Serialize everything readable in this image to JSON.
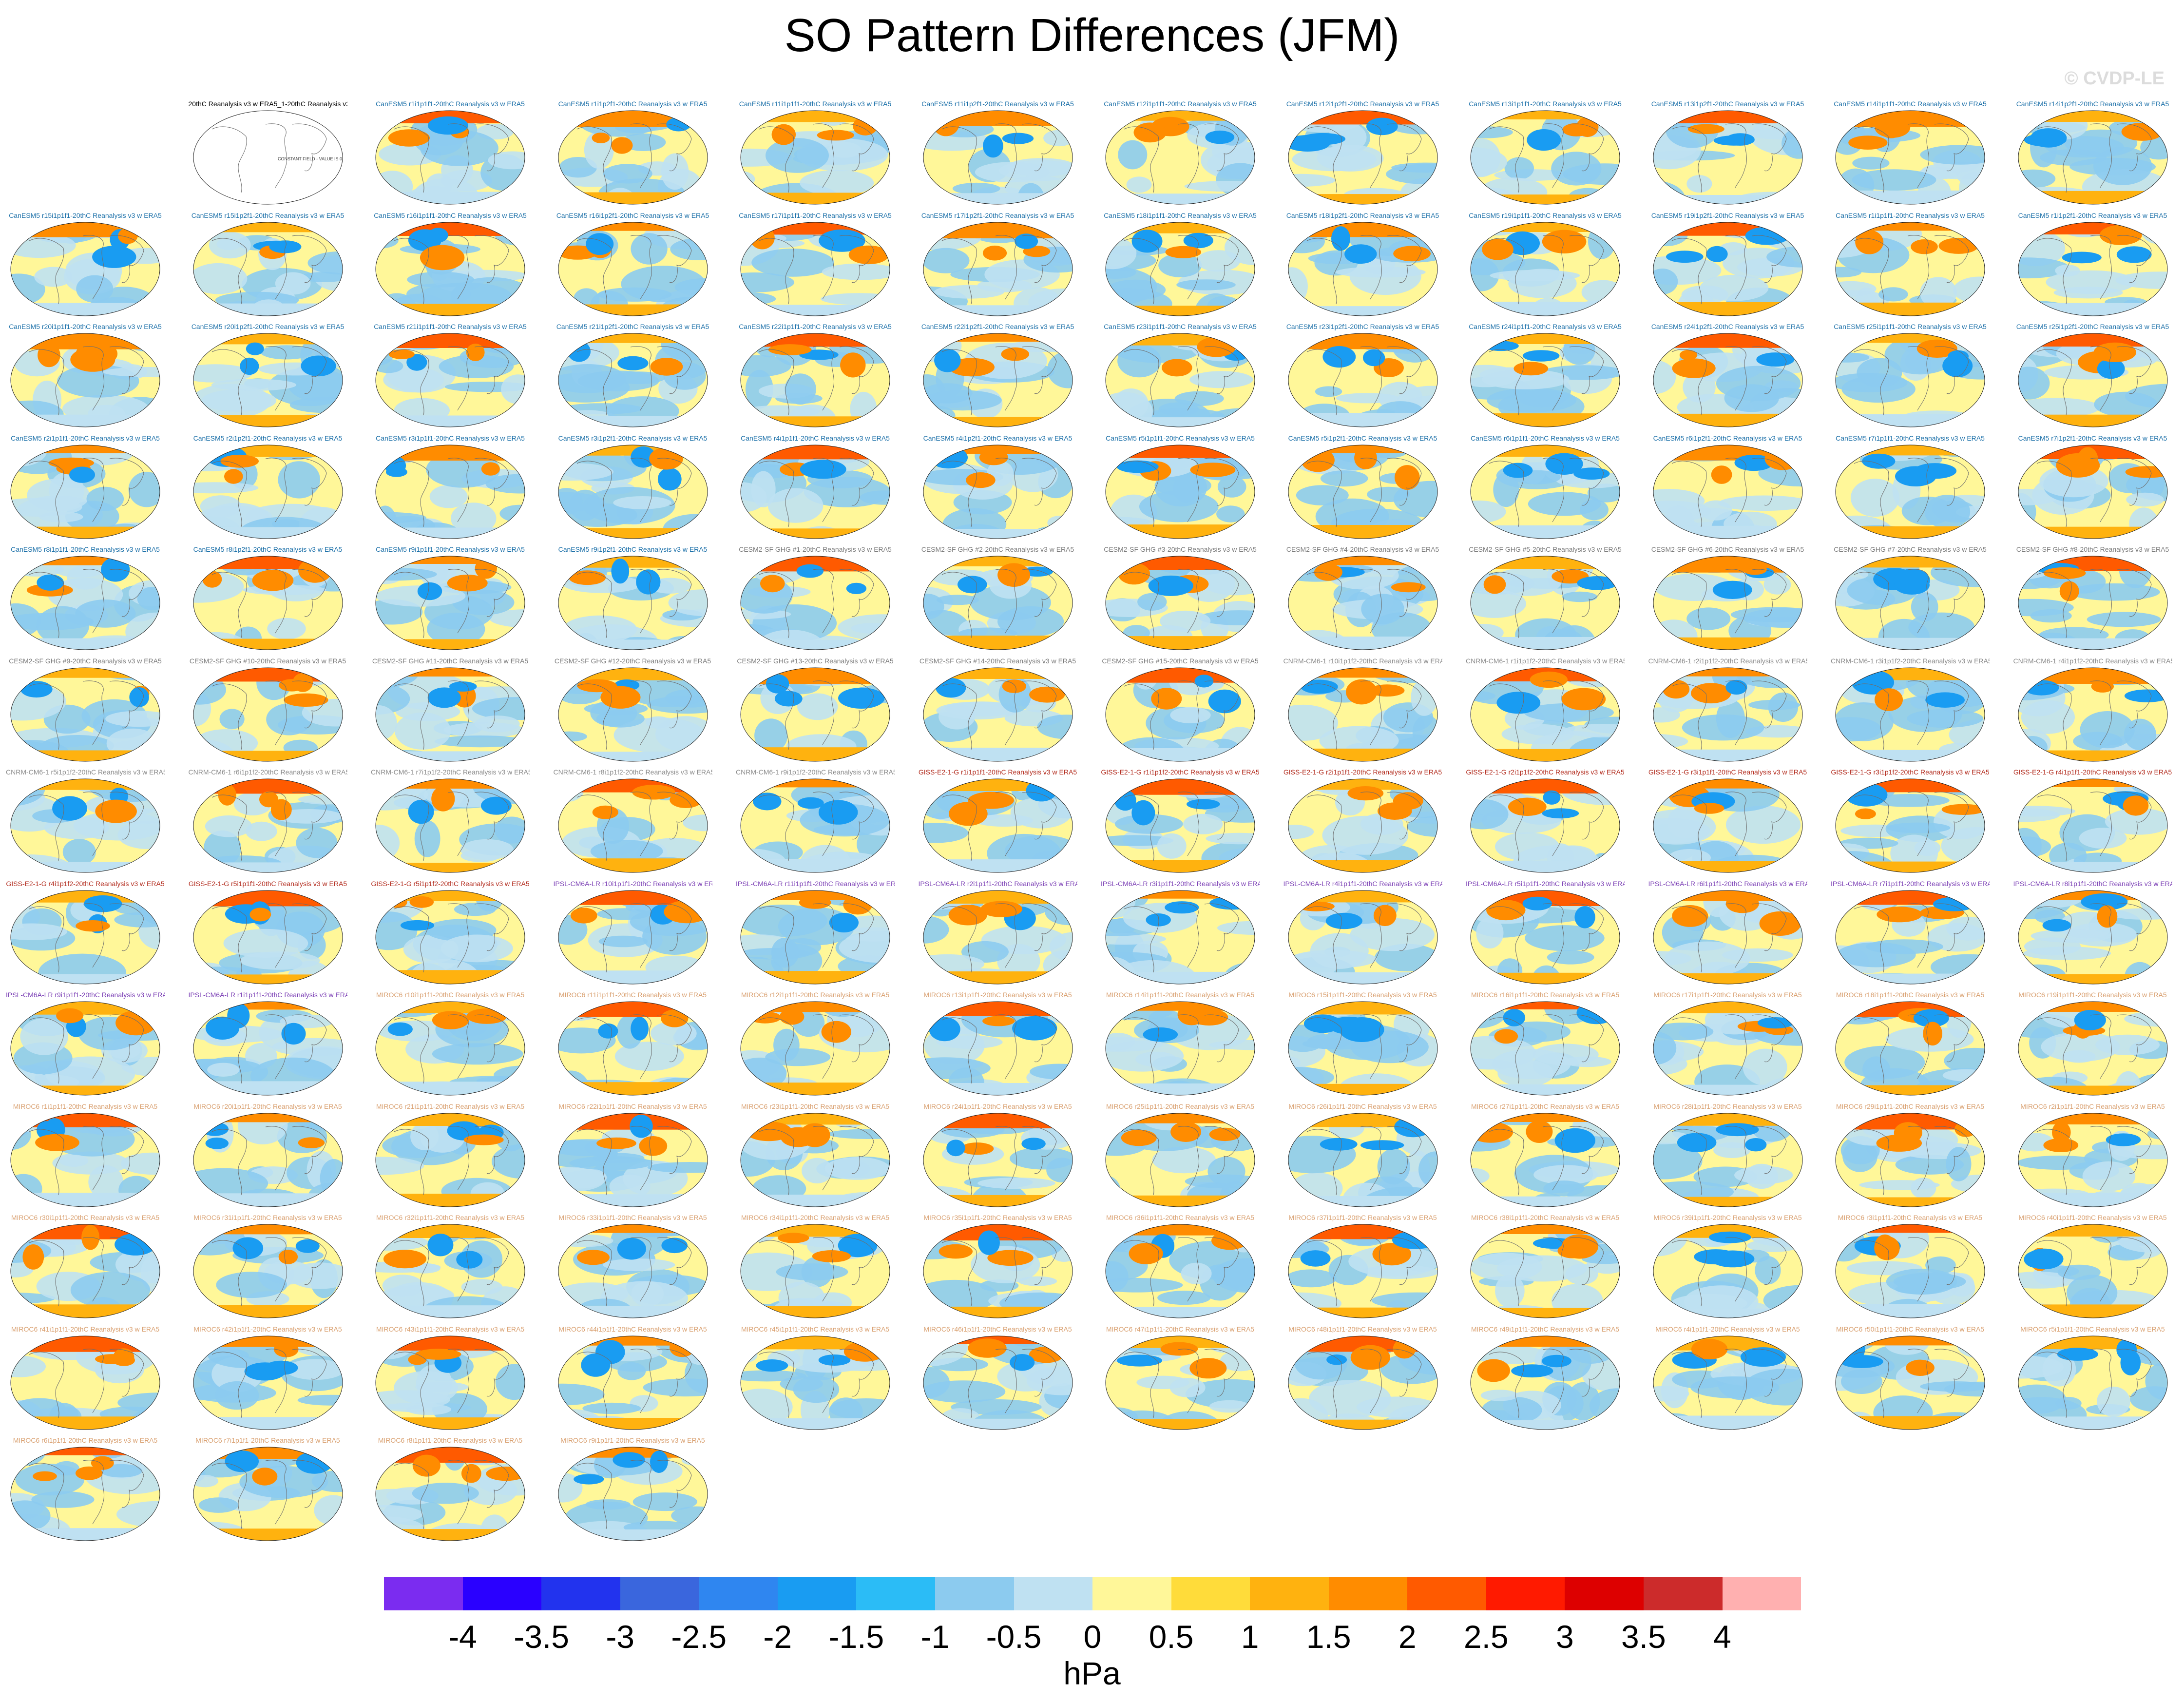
{
  "title": "SO Pattern Differences (JFM)",
  "watermark": "© CVDP-LE",
  "units": "hPa",
  "reference_panel": {
    "label": "20thC Reanalysis v3 w ERA5_1-20thC Reanalysis v3 w ERA5",
    "note": "CONSTANT FIELD - VALUE IS 0"
  },
  "colors": {
    "CanESM5": "#1a6fa8",
    "CESM2": "#7a7a7a",
    "CNRM": "#8a8a8a",
    "GISS": "#b22a1c",
    "IPSL": "#7b3fb5",
    "MIROC6": "#d9a070"
  },
  "colorbar": {
    "colors": [
      "#7b2cf0",
      "#2a00ff",
      "#2233ee",
      "#3a66dd",
      "#2f86f0",
      "#199cf2",
      "#2bbcf6",
      "#8ccbef",
      "#bfe1f2",
      "#fff799",
      "#ffdc3a",
      "#ffb20f",
      "#ff8c00",
      "#ff5a00",
      "#ff1a00",
      "#dd0000",
      "#cc2b2b",
      "#ffb0b0"
    ],
    "ticks": [
      "-4",
      "-3.5",
      "-3",
      "-2.5",
      "-2",
      "-1.5",
      "-1",
      "-0.5",
      "0",
      "0.5",
      "1",
      "1.5",
      "2",
      "2.5",
      "3",
      "3.5",
      "4"
    ]
  },
  "panels": [
    {
      "label": "CanESM5 r1i1p1f1-20thC Reanalysis v3 w ERA5",
      "model": "CanESM5"
    },
    {
      "label": "CanESM5 r1i1p2f1-20thC Reanalysis v3 w ERA5",
      "model": "CanESM5"
    },
    {
      "label": "CanESM5 r11i1p1f1-20thC Reanalysis v3 w ERA5",
      "model": "CanESM5"
    },
    {
      "label": "CanESM5 r11i1p2f1-20thC Reanalysis v3 w ERA5",
      "model": "CanESM5"
    },
    {
      "label": "CanESM5 r12i1p1f1-20thC Reanalysis v3 w ERA5",
      "model": "CanESM5"
    },
    {
      "label": "CanESM5 r12i1p2f1-20thC Reanalysis v3 w ERA5",
      "model": "CanESM5"
    },
    {
      "label": "CanESM5 r13i1p1f1-20thC Reanalysis v3 w ERA5",
      "model": "CanESM5"
    },
    {
      "label": "CanESM5 r13i1p2f1-20thC Reanalysis v3 w ERA5",
      "model": "CanESM5"
    },
    {
      "label": "CanESM5 r14i1p1f1-20thC Reanalysis v3 w ERA5",
      "model": "CanESM5"
    },
    {
      "label": "CanESM5 r14i1p2f1-20thC Reanalysis v3 w ERA5",
      "model": "CanESM5"
    },
    {
      "label": "CanESM5 r15i1p1f1-20thC Reanalysis v3 w ERA5",
      "model": "CanESM5"
    },
    {
      "label": "CanESM5 r15i1p2f1-20thC Reanalysis v3 w ERA5",
      "model": "CanESM5"
    },
    {
      "label": "CanESM5 r16i1p1f1-20thC Reanalysis v3 w ERA5",
      "model": "CanESM5"
    },
    {
      "label": "CanESM5 r16i1p2f1-20thC Reanalysis v3 w ERA5",
      "model": "CanESM5"
    },
    {
      "label": "CanESM5 r17i1p1f1-20thC Reanalysis v3 w ERA5",
      "model": "CanESM5"
    },
    {
      "label": "CanESM5 r17i1p2f1-20thC Reanalysis v3 w ERA5",
      "model": "CanESM5"
    },
    {
      "label": "CanESM5 r18i1p1f1-20thC Reanalysis v3 w ERA5",
      "model": "CanESM5"
    },
    {
      "label": "CanESM5 r18i1p2f1-20thC Reanalysis v3 w ERA5",
      "model": "CanESM5"
    },
    {
      "label": "CanESM5 r19i1p1f1-20thC Reanalysis v3 w ERA5",
      "model": "CanESM5"
    },
    {
      "label": "CanESM5 r19i1p2f1-20thC Reanalysis v3 w ERA5",
      "model": "CanESM5"
    },
    {
      "label": "CanESM5 r1i1p1f1-20thC Reanalysis v3 w ERA5",
      "model": "CanESM5"
    },
    {
      "label": "CanESM5 r1i1p2f1-20thC Reanalysis v3 w ERA5",
      "model": "CanESM5"
    },
    {
      "label": "CanESM5 r20i1p1f1-20thC Reanalysis v3 w ERA5",
      "model": "CanESM5"
    },
    {
      "label": "CanESM5 r20i1p2f1-20thC Reanalysis v3 w ERA5",
      "model": "CanESM5"
    },
    {
      "label": "CanESM5 r21i1p1f1-20thC Reanalysis v3 w ERA5",
      "model": "CanESM5"
    },
    {
      "label": "CanESM5 r21i1p2f1-20thC Reanalysis v3 w ERA5",
      "model": "CanESM5"
    },
    {
      "label": "CanESM5 r22i1p1f1-20thC Reanalysis v3 w ERA5",
      "model": "CanESM5"
    },
    {
      "label": "CanESM5 r22i1p2f1-20thC Reanalysis v3 w ERA5",
      "model": "CanESM5"
    },
    {
      "label": "CanESM5 r23i1p1f1-20thC Reanalysis v3 w ERA5",
      "model": "CanESM5"
    },
    {
      "label": "CanESM5 r23i1p2f1-20thC Reanalysis v3 w ERA5",
      "model": "CanESM5"
    },
    {
      "label": "CanESM5 r24i1p1f1-20thC Reanalysis v3 w ERA5",
      "model": "CanESM5"
    },
    {
      "label": "CanESM5 r24i1p2f1-20thC Reanalysis v3 w ERA5",
      "model": "CanESM5"
    },
    {
      "label": "CanESM5 r25i1p1f1-20thC Reanalysis v3 w ERA5",
      "model": "CanESM5"
    },
    {
      "label": "CanESM5 r25i1p2f1-20thC Reanalysis v3 w ERA5",
      "model": "CanESM5"
    },
    {
      "label": "CanESM5 r2i1p1f1-20thC Reanalysis v3 w ERA5",
      "model": "CanESM5"
    },
    {
      "label": "CanESM5 r2i1p2f1-20thC Reanalysis v3 w ERA5",
      "model": "CanESM5"
    },
    {
      "label": "CanESM5 r3i1p1f1-20thC Reanalysis v3 w ERA5",
      "model": "CanESM5"
    },
    {
      "label": "CanESM5 r3i1p2f1-20thC Reanalysis v3 w ERA5",
      "model": "CanESM5"
    },
    {
      "label": "CanESM5 r4i1p1f1-20thC Reanalysis v3 w ERA5",
      "model": "CanESM5"
    },
    {
      "label": "CanESM5 r4i1p2f1-20thC Reanalysis v3 w ERA5",
      "model": "CanESM5"
    },
    {
      "label": "CanESM5 r5i1p1f1-20thC Reanalysis v3 w ERA5",
      "model": "CanESM5"
    },
    {
      "label": "CanESM5 r5i1p2f1-20thC Reanalysis v3 w ERA5",
      "model": "CanESM5"
    },
    {
      "label": "CanESM5 r6i1p1f1-20thC Reanalysis v3 w ERA5",
      "model": "CanESM5"
    },
    {
      "label": "CanESM5 r6i1p2f1-20thC Reanalysis v3 w ERA5",
      "model": "CanESM5"
    },
    {
      "label": "CanESM5 r7i1p1f1-20thC Reanalysis v3 w ERA5",
      "model": "CanESM5"
    },
    {
      "label": "CanESM5 r7i1p2f1-20thC Reanalysis v3 w ERA5",
      "model": "CanESM5"
    },
    {
      "label": "CanESM5 r8i1p1f1-20thC Reanalysis v3 w ERA5",
      "model": "CanESM5"
    },
    {
      "label": "CanESM5 r8i1p2f1-20thC Reanalysis v3 w ERA5",
      "model": "CanESM5"
    },
    {
      "label": "CanESM5 r9i1p1f1-20thC Reanalysis v3 w ERA5",
      "model": "CanESM5"
    },
    {
      "label": "CanESM5 r9i1p2f1-20thC Reanalysis v3 w ERA5",
      "model": "CanESM5"
    },
    {
      "label": "CESM2-SF GHG #1-20thC Reanalysis v3 w ERA5",
      "model": "CESM2"
    },
    {
      "label": "CESM2-SF GHG #2-20thC Reanalysis v3 w ERA5",
      "model": "CESM2"
    },
    {
      "label": "CESM2-SF GHG #3-20thC Reanalysis v3 w ERA5",
      "model": "CESM2"
    },
    {
      "label": "CESM2-SF GHG #4-20thC Reanalysis v3 w ERA5",
      "model": "CESM2"
    },
    {
      "label": "CESM2-SF GHG #5-20thC Reanalysis v3 w ERA5",
      "model": "CESM2"
    },
    {
      "label": "CESM2-SF GHG #6-20thC Reanalysis v3 w ERA5",
      "model": "CESM2"
    },
    {
      "label": "CESM2-SF GHG #7-20thC Reanalysis v3 w ERA5",
      "model": "CESM2"
    },
    {
      "label": "CESM2-SF GHG #8-20thC Reanalysis v3 w ERA5",
      "model": "CESM2"
    },
    {
      "label": "CESM2-SF GHG #9-20thC Reanalysis v3 w ERA5",
      "model": "CESM2"
    },
    {
      "label": "CESM2-SF GHG #10-20thC Reanalysis v3 w ERA5",
      "model": "CESM2"
    },
    {
      "label": "CESM2-SF GHG #11-20thC Reanalysis v3 w ERA5",
      "model": "CESM2"
    },
    {
      "label": "CESM2-SF GHG #12-20thC Reanalysis v3 w ERA5",
      "model": "CESM2"
    },
    {
      "label": "CESM2-SF GHG #13-20thC Reanalysis v3 w ERA5",
      "model": "CESM2"
    },
    {
      "label": "CESM2-SF GHG #14-20thC Reanalysis v3 w ERA5",
      "model": "CESM2"
    },
    {
      "label": "CESM2-SF GHG #15-20thC Reanalysis v3 w ERA5",
      "model": "CESM2"
    },
    {
      "label": "CNRM-CM6-1 r10i1p1f2-20thC Reanalysis v3 w ERA5",
      "model": "CNRM"
    },
    {
      "label": "CNRM-CM6-1 r1i1p1f2-20thC Reanalysis v3 w ERA5",
      "model": "CNRM"
    },
    {
      "label": "CNRM-CM6-1 r2i1p1f2-20thC Reanalysis v3 w ERA5",
      "model": "CNRM"
    },
    {
      "label": "CNRM-CM6-1 r3i1p1f2-20thC Reanalysis v3 w ERA5",
      "model": "CNRM"
    },
    {
      "label": "CNRM-CM6-1 r4i1p1f2-20thC Reanalysis v3 w ERA5",
      "model": "CNRM"
    },
    {
      "label": "CNRM-CM6-1 r5i1p1f2-20thC Reanalysis v3 w ERA5",
      "model": "CNRM"
    },
    {
      "label": "CNRM-CM6-1 r6i1p1f2-20thC Reanalysis v3 w ERA5",
      "model": "CNRM"
    },
    {
      "label": "CNRM-CM6-1 r7i1p1f2-20thC Reanalysis v3 w ERA5",
      "model": "CNRM"
    },
    {
      "label": "CNRM-CM6-1 r8i1p1f2-20thC Reanalysis v3 w ERA5",
      "model": "CNRM"
    },
    {
      "label": "CNRM-CM6-1 r9i1p1f2-20thC Reanalysis v3 w ERA5",
      "model": "CNRM"
    },
    {
      "label": "GISS-E2-1-G r1i1p1f1-20thC Reanalysis v3 w ERA5",
      "model": "GISS"
    },
    {
      "label": "GISS-E2-1-G r1i1p1f2-20thC Reanalysis v3 w ERA5",
      "model": "GISS"
    },
    {
      "label": "GISS-E2-1-G r2i1p1f1-20thC Reanalysis v3 w ERA5",
      "model": "GISS"
    },
    {
      "label": "GISS-E2-1-G r2i1p1f2-20thC Reanalysis v3 w ERA5",
      "model": "GISS"
    },
    {
      "label": "GISS-E2-1-G r3i1p1f1-20thC Reanalysis v3 w ERA5",
      "model": "GISS"
    },
    {
      "label": "GISS-E2-1-G r3i1p1f2-20thC Reanalysis v3 w ERA5",
      "model": "GISS"
    },
    {
      "label": "GISS-E2-1-G r4i1p1f1-20thC Reanalysis v3 w ERA5",
      "model": "GISS"
    },
    {
      "label": "GISS-E2-1-G r4i1p1f2-20thC Reanalysis v3 w ERA5",
      "model": "GISS"
    },
    {
      "label": "GISS-E2-1-G r5i1p1f1-20thC Reanalysis v3 w ERA5",
      "model": "GISS"
    },
    {
      "label": "GISS-E2-1-G r5i1p1f2-20thC Reanalysis v3 w ERA5",
      "model": "GISS"
    },
    {
      "label": "IPSL-CM6A-LR r10i1p1f1-20thC Reanalysis v3 w ERA5",
      "model": "IPSL"
    },
    {
      "label": "IPSL-CM6A-LR r11i1p1f1-20thC Reanalysis v3 w ERA5",
      "model": "IPSL"
    },
    {
      "label": "IPSL-CM6A-LR r2i1p1f1-20thC Reanalysis v3 w ERA5",
      "model": "IPSL"
    },
    {
      "label": "IPSL-CM6A-LR r3i1p1f1-20thC Reanalysis v3 w ERA5",
      "model": "IPSL"
    },
    {
      "label": "IPSL-CM6A-LR r4i1p1f1-20thC Reanalysis v3 w ERA5",
      "model": "IPSL"
    },
    {
      "label": "IPSL-CM6A-LR r5i1p1f1-20thC Reanalysis v3 w ERA5",
      "model": "IPSL"
    },
    {
      "label": "IPSL-CM6A-LR r6i1p1f1-20thC Reanalysis v3 w ERA5",
      "model": "IPSL"
    },
    {
      "label": "IPSL-CM6A-LR r7i1p1f1-20thC Reanalysis v3 w ERA5",
      "model": "IPSL"
    },
    {
      "label": "IPSL-CM6A-LR r8i1p1f1-20thC Reanalysis v3 w ERA5",
      "model": "IPSL"
    },
    {
      "label": "IPSL-CM6A-LR r9i1p1f1-20thC Reanalysis v3 w ERA5",
      "model": "IPSL"
    },
    {
      "label": "IPSL-CM6A-LR r1i1p1f1-20thC Reanalysis v3 w ERA5",
      "model": "IPSL"
    },
    {
      "label": "MIROC6 r10i1p1f1-20thC Reanalysis v3 w ERA5",
      "model": "MIROC6"
    },
    {
      "label": "MIROC6 r11i1p1f1-20thC Reanalysis v3 w ERA5",
      "model": "MIROC6"
    },
    {
      "label": "MIROC6 r12i1p1f1-20thC Reanalysis v3 w ERA5",
      "model": "MIROC6"
    },
    {
      "label": "MIROC6 r13i1p1f1-20thC Reanalysis v3 w ERA5",
      "model": "MIROC6"
    },
    {
      "label": "MIROC6 r14i1p1f1-20thC Reanalysis v3 w ERA5",
      "model": "MIROC6"
    },
    {
      "label": "MIROC6 r15i1p1f1-20thC Reanalysis v3 w ERA5",
      "model": "MIROC6"
    },
    {
      "label": "MIROC6 r16i1p1f1-20thC Reanalysis v3 w ERA5",
      "model": "MIROC6"
    },
    {
      "label": "MIROC6 r17i1p1f1-20thC Reanalysis v3 w ERA5",
      "model": "MIROC6"
    },
    {
      "label": "MIROC6 r18i1p1f1-20thC Reanalysis v3 w ERA5",
      "model": "MIROC6"
    },
    {
      "label": "MIROC6 r19i1p1f1-20thC Reanalysis v3 w ERA5",
      "model": "MIROC6"
    },
    {
      "label": "MIROC6 r1i1p1f1-20thC Reanalysis v3 w ERA5",
      "model": "MIROC6"
    },
    {
      "label": "MIROC6 r20i1p1f1-20thC Reanalysis v3 w ERA5",
      "model": "MIROC6"
    },
    {
      "label": "MIROC6 r21i1p1f1-20thC Reanalysis v3 w ERA5",
      "model": "MIROC6"
    },
    {
      "label": "MIROC6 r22i1p1f1-20thC Reanalysis v3 w ERA5",
      "model": "MIROC6"
    },
    {
      "label": "MIROC6 r23i1p1f1-20thC Reanalysis v3 w ERA5",
      "model": "MIROC6"
    },
    {
      "label": "MIROC6 r24i1p1f1-20thC Reanalysis v3 w ERA5",
      "model": "MIROC6"
    },
    {
      "label": "MIROC6 r25i1p1f1-20thC Reanalysis v3 w ERA5",
      "model": "MIROC6"
    },
    {
      "label": "MIROC6 r26i1p1f1-20thC Reanalysis v3 w ERA5",
      "model": "MIROC6"
    },
    {
      "label": "MIROC6 r27i1p1f1-20thC Reanalysis v3 w ERA5",
      "model": "MIROC6"
    },
    {
      "label": "MIROC6 r28i1p1f1-20thC Reanalysis v3 w ERA5",
      "model": "MIROC6"
    },
    {
      "label": "MIROC6 r29i1p1f1-20thC Reanalysis v3 w ERA5",
      "model": "MIROC6"
    },
    {
      "label": "MIROC6 r2i1p1f1-20thC Reanalysis v3 w ERA5",
      "model": "MIROC6"
    },
    {
      "label": "MIROC6 r30i1p1f1-20thC Reanalysis v3 w ERA5",
      "model": "MIROC6"
    },
    {
      "label": "MIROC6 r31i1p1f1-20thC Reanalysis v3 w ERA5",
      "model": "MIROC6"
    },
    {
      "label": "MIROC6 r32i1p1f1-20thC Reanalysis v3 w ERA5",
      "model": "MIROC6"
    },
    {
      "label": "MIROC6 r33i1p1f1-20thC Reanalysis v3 w ERA5",
      "model": "MIROC6"
    },
    {
      "label": "MIROC6 r34i1p1f1-20thC Reanalysis v3 w ERA5",
      "model": "MIROC6"
    },
    {
      "label": "MIROC6 r35i1p1f1-20thC Reanalysis v3 w ERA5",
      "model": "MIROC6"
    },
    {
      "label": "MIROC6 r36i1p1f1-20thC Reanalysis v3 w ERA5",
      "model": "MIROC6"
    },
    {
      "label": "MIROC6 r37i1p1f1-20thC Reanalysis v3 w ERA5",
      "model": "MIROC6"
    },
    {
      "label": "MIROC6 r38i1p1f1-20thC Reanalysis v3 w ERA5",
      "model": "MIROC6"
    },
    {
      "label": "MIROC6 r39i1p1f1-20thC Reanalysis v3 w ERA5",
      "model": "MIROC6"
    },
    {
      "label": "MIROC6 r3i1p1f1-20thC Reanalysis v3 w ERA5",
      "model": "MIROC6"
    },
    {
      "label": "MIROC6 r40i1p1f1-20thC Reanalysis v3 w ERA5",
      "model": "MIROC6"
    },
    {
      "label": "MIROC6 r41i1p1f1-20thC Reanalysis v3 w ERA5",
      "model": "MIROC6"
    },
    {
      "label": "MIROC6 r42i1p1f1-20thC Reanalysis v3 w ERA5",
      "model": "MIROC6"
    },
    {
      "label": "MIROC6 r43i1p1f1-20thC Reanalysis v3 w ERA5",
      "model": "MIROC6"
    },
    {
      "label": "MIROC6 r44i1p1f1-20thC Reanalysis v3 w ERA5",
      "model": "MIROC6"
    },
    {
      "label": "MIROC6 r45i1p1f1-20thC Reanalysis v3 w ERA5",
      "model": "MIROC6"
    },
    {
      "label": "MIROC6 r46i1p1f1-20thC Reanalysis v3 w ERA5",
      "model": "MIROC6"
    },
    {
      "label": "MIROC6 r47i1p1f1-20thC Reanalysis v3 w ERA5",
      "model": "MIROC6"
    },
    {
      "label": "MIROC6 r48i1p1f1-20thC Reanalysis v3 w ERA5",
      "model": "MIROC6"
    },
    {
      "label": "MIROC6 r49i1p1f1-20thC Reanalysis v3 w ERA5",
      "model": "MIROC6"
    },
    {
      "label": "MIROC6 r4i1p1f1-20thC Reanalysis v3 w ERA5",
      "model": "MIROC6"
    },
    {
      "label": "MIROC6 r50i1p1f1-20thC Reanalysis v3 w ERA5",
      "model": "MIROC6"
    },
    {
      "label": "MIROC6 r5i1p1f1-20thC Reanalysis v3 w ERA5",
      "model": "MIROC6"
    },
    {
      "label": "MIROC6 r6i1p1f1-20thC Reanalysis v3 w ERA5",
      "model": "MIROC6"
    },
    {
      "label": "MIROC6 r7i1p1f1-20thC Reanalysis v3 w ERA5",
      "model": "MIROC6"
    },
    {
      "label": "MIROC6 r8i1p1f1-20thC Reanalysis v3 w ERA5",
      "model": "MIROC6"
    },
    {
      "label": "MIROC6 r9i1p1f1-20thC Reanalysis v3 w ERA5",
      "model": "MIROC6"
    }
  ]
}
